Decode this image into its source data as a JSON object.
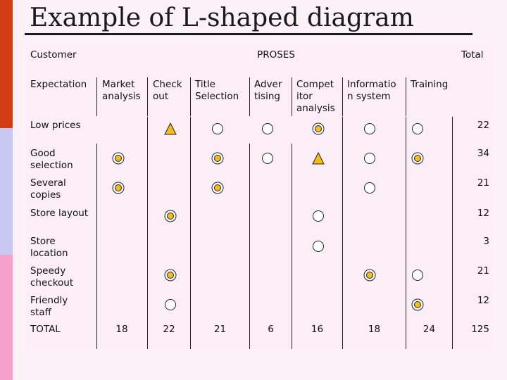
{
  "title": "Example of L-shaped diagram",
  "header": {
    "customer": "Customer",
    "proses": "PROSES",
    "total": "Total"
  },
  "subheader": {
    "expectation": "Expectation",
    "columns": [
      "Market\nanalysis",
      "Check\nout",
      "Title\nSelection",
      "Adver\ntising",
      "Compet\nitor\nanalysis",
      "Informatio\nn system",
      "Training"
    ]
  },
  "rows": [
    {
      "label": "Low prices",
      "total": "22"
    },
    {
      "label": "Good\nselection",
      "total": "34"
    },
    {
      "label": "Several\ncopies",
      "total": "21"
    },
    {
      "label": "Store layout",
      "total": "12"
    },
    {
      "label": "Store\nlocation",
      "total": "3"
    },
    {
      "label": "Speedy\ncheckout",
      "total": "21"
    },
    {
      "label": "Friendly\nstaff",
      "total": "12"
    }
  ],
  "totals_row": {
    "label": "TOTAL",
    "values": [
      "18",
      "22",
      "21",
      "6",
      "16",
      "18",
      "24"
    ],
    "grand_total": "125"
  },
  "marks": [
    {
      "row": 0,
      "col": 1,
      "type": "triangle"
    },
    {
      "row": 0,
      "col": 2,
      "type": "circle"
    },
    {
      "row": 0,
      "col": 3,
      "type": "circle"
    },
    {
      "row": 0,
      "col": 4,
      "type": "double"
    },
    {
      "row": 0,
      "col": 5,
      "type": "circle"
    },
    {
      "row": 0,
      "col": 6,
      "type": "circle"
    },
    {
      "row": 1,
      "col": 0,
      "type": "double"
    },
    {
      "row": 1,
      "col": 2,
      "type": "double"
    },
    {
      "row": 1,
      "col": 3,
      "type": "circle"
    },
    {
      "row": 1,
      "col": 4,
      "type": "triangle"
    },
    {
      "row": 1,
      "col": 5,
      "type": "circle"
    },
    {
      "row": 1,
      "col": 6,
      "type": "double"
    },
    {
      "row": 2,
      "col": 0,
      "type": "double"
    },
    {
      "row": 2,
      "col": 2,
      "type": "double"
    },
    {
      "row": 2,
      "col": 5,
      "type": "circle"
    },
    {
      "row": 3,
      "col": 1,
      "type": "double"
    },
    {
      "row": 3,
      "col": 4,
      "type": "circle"
    },
    {
      "row": 4,
      "col": 4,
      "type": "circle"
    },
    {
      "row": 5,
      "col": 1,
      "type": "double"
    },
    {
      "row": 5,
      "col": 5,
      "type": "double"
    },
    {
      "row": 5,
      "col": 6,
      "type": "circle"
    },
    {
      "row": 6,
      "col": 1,
      "type": "circle"
    },
    {
      "row": 6,
      "col": 6,
      "type": "double"
    }
  ],
  "colors": {
    "left_bar_red": "#d23d16",
    "left_bar_lavender": "#c8c8f2",
    "left_bar_pink": "#f5a1cc",
    "mark_fill_yellow": "#f6bd1a",
    "board_bg": "#fbeef6",
    "line": "#222222"
  }
}
